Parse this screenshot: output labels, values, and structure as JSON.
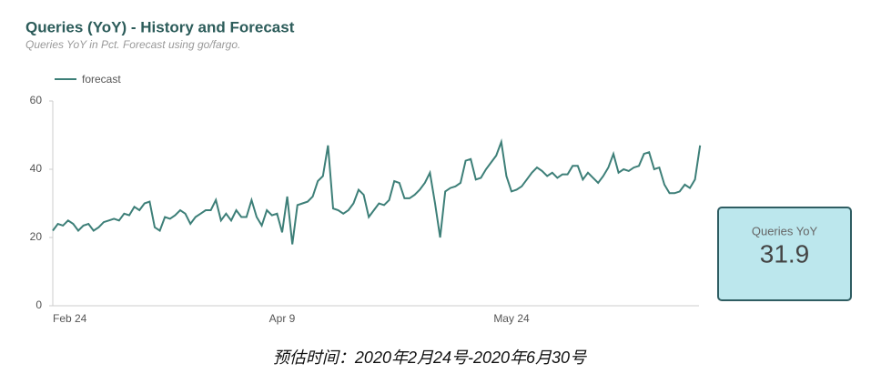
{
  "chart_data": {
    "type": "line",
    "title": "Queries (YoY) - History and Forecast",
    "subtitle": "Queries YoY in Pct. Forecast using go/fargo.",
    "categories": [
      "Feb 24",
      null,
      null,
      null,
      null,
      null,
      null,
      null,
      null,
      null,
      null,
      null,
      null,
      null,
      null,
      null,
      null,
      null,
      null,
      null,
      null,
      null,
      null,
      null,
      null,
      null,
      null,
      null,
      null,
      null,
      null,
      null,
      null,
      null,
      null,
      null,
      null,
      null,
      null,
      null,
      null,
      null,
      null,
      null,
      null,
      "Apr 9",
      null,
      null,
      null,
      null,
      null,
      null,
      null,
      null,
      null,
      null,
      null,
      null,
      null,
      null,
      null,
      null,
      null,
      null,
      null,
      null,
      null,
      null,
      null,
      null,
      null,
      null,
      null,
      null,
      null,
      null,
      null,
      null,
      null,
      null,
      null,
      null,
      null,
      null,
      null,
      null,
      null,
      null,
      null,
      null,
      "May 24",
      null,
      null,
      null,
      null,
      null,
      null,
      null,
      null,
      null,
      null,
      null,
      null,
      null,
      null,
      null,
      null,
      null,
      null,
      null,
      null,
      null,
      null,
      null,
      null,
      null,
      null,
      null,
      null,
      null,
      null,
      null,
      null,
      null,
      null,
      null,
      null,
      null
    ],
    "series": [
      {
        "name": "forecast",
        "color": "#3d7f78",
        "values": [
          22,
          24,
          23.5,
          25,
          24,
          22,
          23.5,
          24,
          22,
          23,
          24.5,
          25,
          25.5,
          25,
          27,
          26.5,
          29,
          28,
          30,
          30.5,
          23,
          22,
          26,
          25.5,
          26.5,
          28,
          27,
          24,
          26,
          27,
          28,
          28,
          31,
          25,
          27,
          25,
          28,
          26,
          26,
          31,
          26,
          23.5,
          28,
          26.5,
          27,
          21.5,
          32,
          18,
          29.5,
          30,
          30.5,
          32,
          36.5,
          38,
          47,
          28.5,
          28,
          27,
          28,
          30,
          34,
          32.5,
          26,
          28,
          30,
          29.5,
          31,
          36.5,
          36,
          31.5,
          31.5,
          32.5,
          34,
          36,
          39,
          30,
          20,
          33.5,
          34.5,
          35,
          36,
          42.5,
          43,
          37,
          37.5,
          40,
          42,
          44,
          48,
          38,
          33.5,
          34,
          35,
          37,
          39,
          40.5,
          39.5,
          38,
          39,
          37.5,
          38.5,
          38.5,
          41,
          41,
          37,
          39,
          37.5,
          36,
          38,
          40.5,
          44.5,
          39,
          40,
          39.5,
          40.5,
          41,
          44.5,
          45,
          40,
          40.5,
          35.5,
          33,
          33,
          33.5,
          35.5,
          34.5,
          37,
          47
        ]
      }
    ],
    "ylim": [
      0,
      60
    ],
    "yticks": [
      0,
      20,
      40,
      60
    ],
    "grid": false,
    "legend": "top-left",
    "scorecard": {
      "label": "Queries YoY",
      "value": 31.9
    },
    "caption": "预估时间：2020年2月24号-2020年6月30号"
  }
}
